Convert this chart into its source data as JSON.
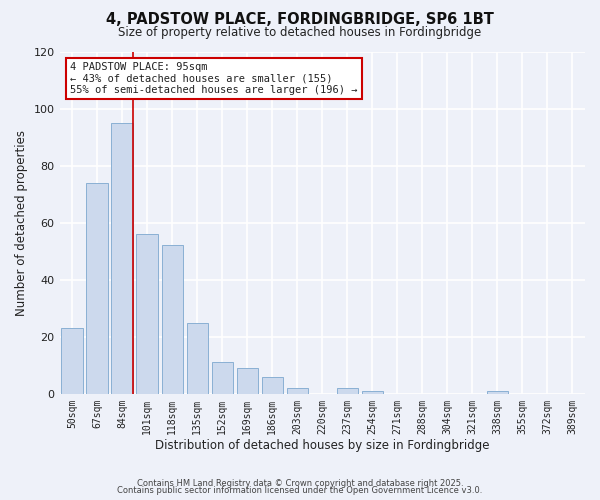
{
  "title": "4, PADSTOW PLACE, FORDINGBRIDGE, SP6 1BT",
  "subtitle": "Size of property relative to detached houses in Fordingbridge",
  "xlabel": "Distribution of detached houses by size in Fordingbridge",
  "ylabel": "Number of detached properties",
  "bar_labels": [
    "50sqm",
    "67sqm",
    "84sqm",
    "101sqm",
    "118sqm",
    "135sqm",
    "152sqm",
    "169sqm",
    "186sqm",
    "203sqm",
    "220sqm",
    "237sqm",
    "254sqm",
    "271sqm",
    "288sqm",
    "304sqm",
    "321sqm",
    "338sqm",
    "355sqm",
    "372sqm",
    "389sqm"
  ],
  "bar_values": [
    23,
    74,
    95,
    56,
    52,
    25,
    11,
    9,
    6,
    2,
    0,
    2,
    1,
    0,
    0,
    0,
    0,
    1,
    0,
    0,
    0
  ],
  "bar_color": "#ccd9ed",
  "bar_edge_color": "#8ab0d4",
  "vline_color": "#cc0000",
  "ylim": [
    0,
    120
  ],
  "yticks": [
    0,
    20,
    40,
    60,
    80,
    100,
    120
  ],
  "annotation_title": "4 PADSTOW PLACE: 95sqm",
  "annotation_line1": "← 43% of detached houses are smaller (155)",
  "annotation_line2": "55% of semi-detached houses are larger (196) →",
  "annotation_box_color": "#ffffff",
  "annotation_box_edge": "#cc0000",
  "footnote1": "Contains HM Land Registry data © Crown copyright and database right 2025.",
  "footnote2": "Contains public sector information licensed under the Open Government Licence v3.0.",
  "background_color": "#eef1f9",
  "grid_color": "#ffffff"
}
